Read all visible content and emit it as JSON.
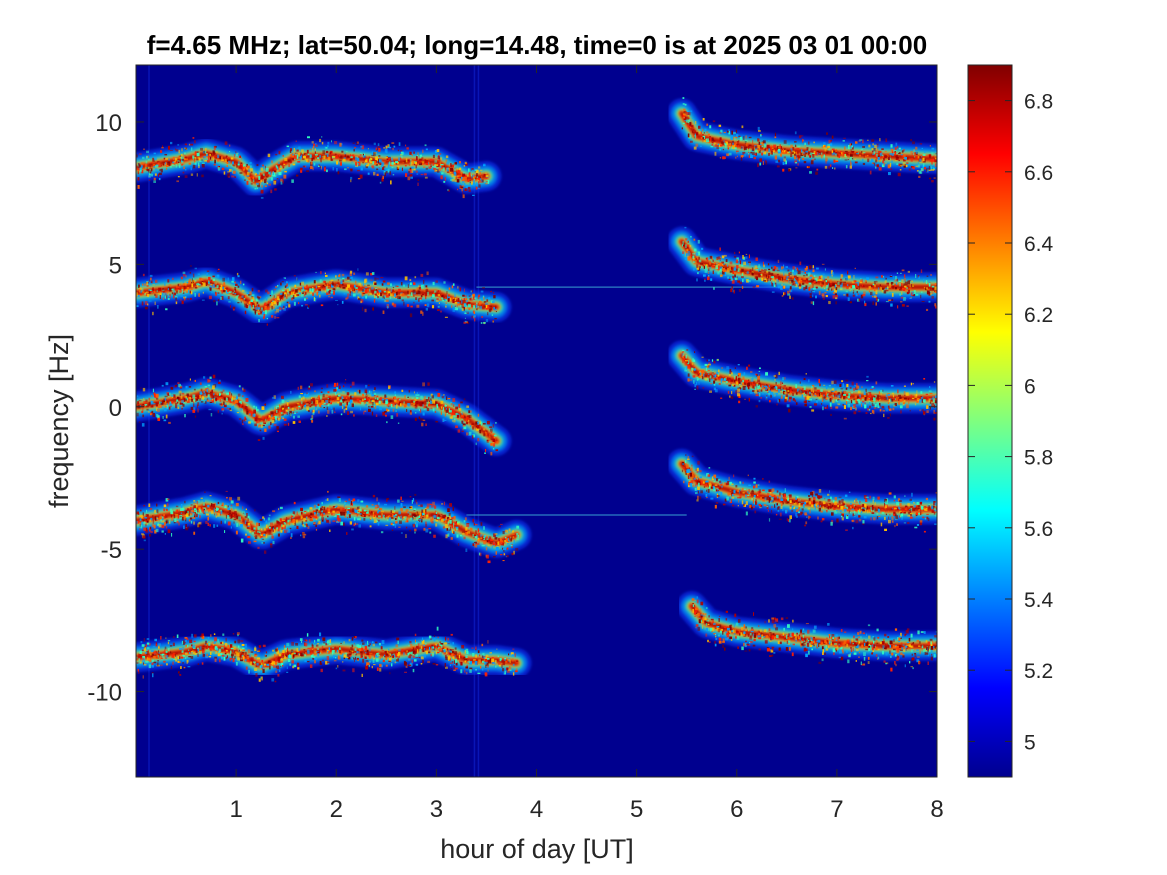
{
  "chart_data": {
    "type": "heatmap",
    "title": "f=4.65 MHz;  lat=50.04; long=14.48, time=0 is at 2025 03 01 00:00",
    "xlabel": "hour of day [UT]",
    "ylabel": "frequency [Hz]",
    "xlim": [
      0,
      8
    ],
    "ylim": [
      -13,
      12
    ],
    "xticks": [
      1,
      2,
      3,
      4,
      5,
      6,
      7,
      8
    ],
    "yticks": [
      10,
      5,
      0,
      -5,
      -10
    ],
    "colorbar": {
      "clim": [
        4.9,
        6.9
      ],
      "ticks": [
        6.8,
        6.6,
        6.4,
        6.2,
        6,
        5.8,
        5.6,
        5.4,
        5.2,
        5
      ],
      "colormap": "jet"
    },
    "background_color": "#00008f",
    "echo_traces": [
      {
        "segments": [
          {
            "x": [
              0.0,
              0.5,
              0.7,
              1.0,
              1.2,
              1.35,
              1.6,
              2.0,
              2.5,
              3.0,
              3.3,
              3.5
            ],
            "y": [
              8.4,
              8.7,
              8.9,
              8.6,
              7.9,
              8.3,
              8.8,
              8.8,
              8.6,
              8.6,
              8.0,
              8.1
            ]
          },
          {
            "x": [
              5.45,
              5.6,
              6.0,
              6.5,
              7.0,
              7.5,
              8.0
            ],
            "y": [
              10.3,
              9.5,
              9.2,
              9.0,
              8.9,
              8.8,
              8.7
            ]
          }
        ]
      },
      {
        "segments": [
          {
            "x": [
              0.0,
              0.5,
              0.7,
              1.0,
              1.25,
              1.5,
              2.0,
              2.5,
              3.0,
              3.3,
              3.6
            ],
            "y": [
              4.0,
              4.2,
              4.4,
              4.0,
              3.4,
              4.0,
              4.3,
              4.0,
              4.0,
              3.6,
              3.5
            ]
          },
          {
            "x": [
              5.45,
              5.6,
              6.0,
              6.5,
              7.0,
              7.5,
              8.0
            ],
            "y": [
              5.8,
              5.1,
              4.8,
              4.5,
              4.3,
              4.2,
              4.2
            ]
          }
        ]
      },
      {
        "segments": [
          {
            "x": [
              0.0,
              0.5,
              0.7,
              1.0,
              1.25,
              1.5,
              2.0,
              2.5,
              3.0,
              3.3,
              3.6
            ],
            "y": [
              0.0,
              0.3,
              0.5,
              0.2,
              -0.5,
              0.0,
              0.3,
              0.2,
              0.1,
              -0.4,
              -1.2
            ]
          },
          {
            "x": [
              5.45,
              5.6,
              6.0,
              6.5,
              7.0,
              7.5,
              8.0
            ],
            "y": [
              1.8,
              1.2,
              0.9,
              0.6,
              0.4,
              0.3,
              0.3
            ]
          }
        ]
      },
      {
        "segments": [
          {
            "x": [
              0.0,
              0.5,
              0.7,
              1.0,
              1.25,
              1.5,
              2.0,
              2.5,
              3.0,
              3.3,
              3.6,
              3.8
            ],
            "y": [
              -4.0,
              -3.7,
              -3.5,
              -3.8,
              -4.5,
              -4.0,
              -3.6,
              -3.8,
              -3.8,
              -4.4,
              -4.8,
              -4.5
            ]
          },
          {
            "x": [
              5.45,
              5.6,
              6.0,
              6.5,
              7.0,
              7.5,
              8.0
            ],
            "y": [
              -2.0,
              -2.6,
              -3.0,
              -3.3,
              -3.5,
              -3.6,
              -3.6
            ]
          }
        ]
      },
      {
        "segments": [
          {
            "x": [
              0.0,
              0.5,
              0.7,
              1.0,
              1.25,
              1.5,
              2.0,
              2.5,
              3.0,
              3.3,
              3.6,
              3.8
            ],
            "y": [
              -8.8,
              -8.6,
              -8.4,
              -8.6,
              -9.1,
              -8.7,
              -8.5,
              -8.7,
              -8.4,
              -8.9,
              -8.9,
              -9.0
            ]
          },
          {
            "x": [
              5.55,
              5.7,
              6.0,
              6.5,
              7.0,
              7.5,
              8.0
            ],
            "y": [
              -7.0,
              -7.6,
              -7.9,
              -8.1,
              -8.3,
              -8.4,
              -8.4
            ]
          }
        ]
      }
    ],
    "horizontal_lines": [
      {
        "y": 4.2,
        "x": [
          3.4,
          8.0
        ]
      },
      {
        "y": -3.8,
        "x": [
          3.3,
          5.5
        ]
      }
    ]
  }
}
